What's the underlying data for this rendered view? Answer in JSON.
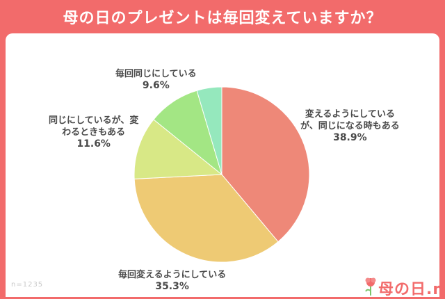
{
  "header": {
    "title": "母の日のプレゼントは毎回変えていますか？"
  },
  "footer": {
    "sample": "n=1235",
    "logo": "母の日.me"
  },
  "chart_data": {
    "type": "pie",
    "title": "母の日のプレゼントは毎回変えていますか？",
    "slices": [
      {
        "label_lines": [
          "変えるようにしている",
          "が、同じになる時もある"
        ],
        "value_label": "38.9%",
        "value": 38.9,
        "color": "#ee8878"
      },
      {
        "label_lines": [
          "毎回変えるようにしている"
        ],
        "value_label": "35.3%",
        "value": 35.3,
        "color": "#eeca74"
      },
      {
        "label_lines": [
          "同じにしているが、変",
          "わるときもある"
        ],
        "value_label": "11.6%",
        "value": 11.6,
        "color": "#d8e886"
      },
      {
        "label_lines": [
          "毎回同じにしている"
        ],
        "value_label": "9.6%",
        "value": 9.6,
        "color": "#a3e684"
      },
      {
        "label_lines": [
          ""
        ],
        "value_label": "",
        "value": 4.6,
        "color": "#95e8bd"
      }
    ]
  }
}
